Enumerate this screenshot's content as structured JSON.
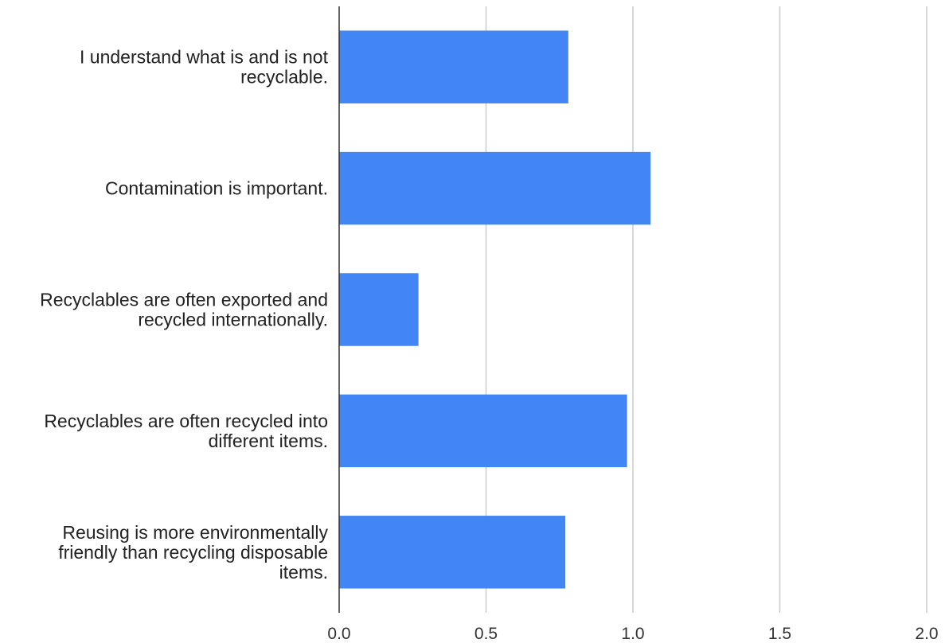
{
  "chart_data": {
    "type": "bar",
    "orientation": "horizontal",
    "title": "",
    "xlabel": "",
    "ylabel": "",
    "categories": [
      [
        "I understand what is and is not",
        "recyclable."
      ],
      [
        "Contamination is important."
      ],
      [
        "Recyclables are often exported and",
        "recycled internationally."
      ],
      [
        "Recyclables are often recycled into",
        "different items."
      ],
      [
        "Reusing is more environmentally",
        "friendly than recycling disposable",
        "items."
      ]
    ],
    "values": [
      0.78,
      1.06,
      0.27,
      0.98,
      0.77
    ],
    "xlim": [
      0,
      2
    ],
    "x_ticks": [
      "0.0",
      "0.5",
      "1.0",
      "1.5",
      "2.0"
    ],
    "grid": "vertical",
    "legend": "none",
    "colors": {
      "bar": "#4285F4",
      "grid": "#cccccc",
      "axis": "#333333"
    }
  }
}
